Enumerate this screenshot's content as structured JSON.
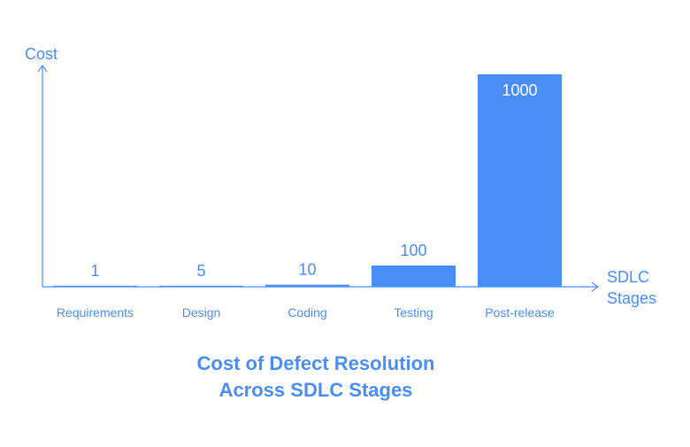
{
  "colors": {
    "accent": "#4a8ef5",
    "bar_label_inside": "#ffffff"
  },
  "chart_data": {
    "type": "bar",
    "title_lines": [
      "Cost of Defect Resolution",
      "Across SDLC Stages"
    ],
    "xlabel_lines": [
      "SDLC",
      "Stages"
    ],
    "ylabel": "Cost",
    "categories": [
      "Requirements",
      "Design",
      "Coding",
      "Testing",
      "Post-release"
    ],
    "values": [
      1,
      5,
      10,
      100,
      1000
    ],
    "data_labels": [
      "1",
      "5",
      "10",
      "100",
      "1000"
    ],
    "ylim": [
      0,
      1000
    ],
    "grid": false,
    "legend": false
  }
}
